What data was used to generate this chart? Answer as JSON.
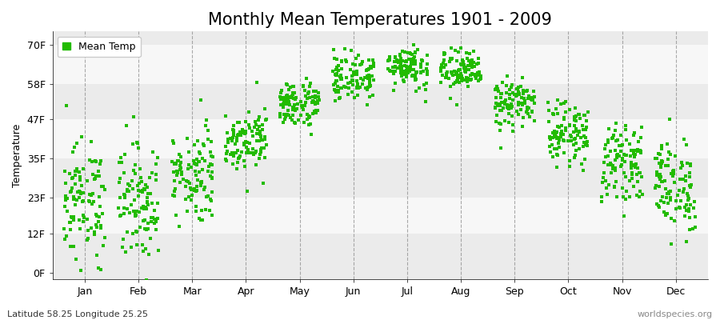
{
  "title": "Monthly Mean Temperatures 1901 - 2009",
  "ylabel": "Temperature",
  "subtitle_left": "Latitude 58.25 Longitude 25.25",
  "subtitle_right": "worldspecies.org",
  "months": [
    "Jan",
    "Feb",
    "Mar",
    "Apr",
    "May",
    "Jun",
    "Jul",
    "Aug",
    "Sep",
    "Oct",
    "Nov",
    "Dec"
  ],
  "ytick_labels": [
    "0F",
    "12F",
    "23F",
    "35F",
    "47F",
    "58F",
    "70F"
  ],
  "ytick_values": [
    0,
    12,
    23,
    35,
    47,
    58,
    70
  ],
  "ylim": [
    -2,
    74
  ],
  "n_years": 109,
  "mean_c": [
    -5.5,
    -5.5,
    -1.0,
    5.0,
    11.0,
    15.5,
    17.5,
    16.5,
    11.0,
    6.0,
    1.0,
    -3.0
  ],
  "std_c": [
    5.0,
    5.0,
    4.0,
    2.5,
    2.0,
    2.0,
    1.8,
    1.8,
    2.0,
    2.5,
    3.0,
    4.0
  ],
  "dot_color": "#22bb00",
  "dot_size": 5,
  "legend_label": "Mean Temp",
  "background_color": "#ffffff",
  "band_colors": [
    "#ebebeb",
    "#f7f7f7"
  ],
  "dashed_line_color": "#888888",
  "title_fontsize": 15,
  "axis_label_fontsize": 9,
  "tick_fontsize": 9,
  "subtitle_fontsize": 8
}
